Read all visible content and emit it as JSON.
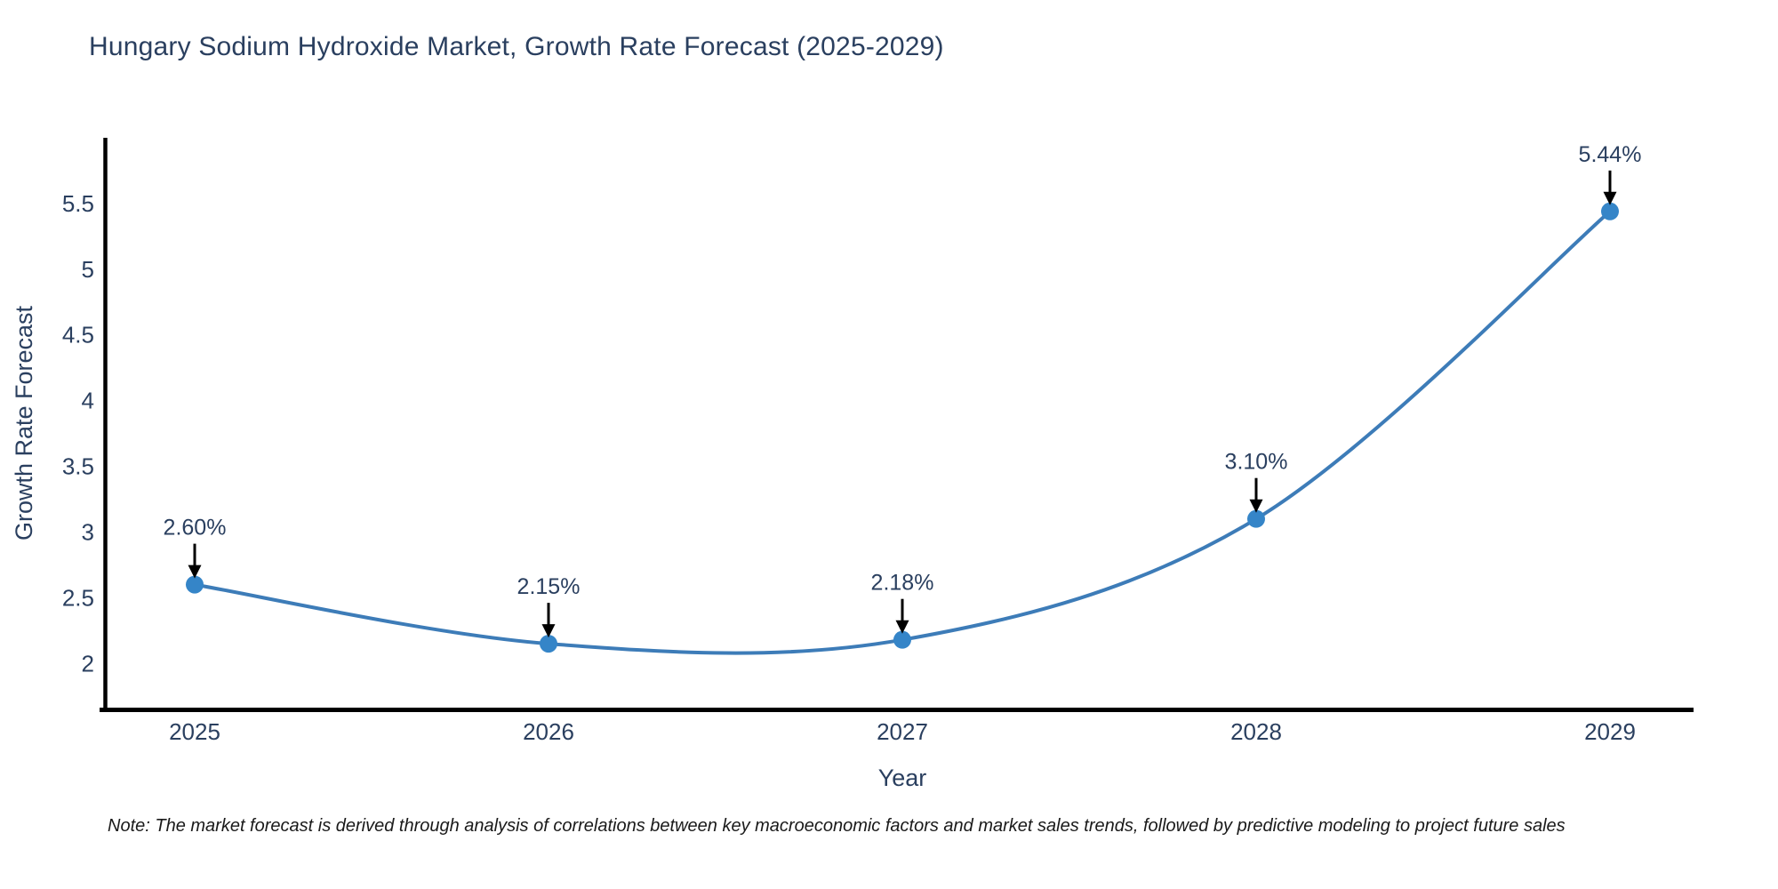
{
  "chart_data": {
    "type": "line",
    "line_shape": "spline",
    "title": "Hungary Sodium Hydroxide Market, Growth Rate Forecast (2025-2029)",
    "x": [
      "2025",
      "2026",
      "2027",
      "2028",
      "2029"
    ],
    "series": [
      {
        "name": "Growth Rate Forecast",
        "values": [
          2.6,
          2.15,
          2.18,
          3.1,
          5.44
        ]
      }
    ],
    "point_labels": [
      "2.60%",
      "2.15%",
      "2.18%",
      "3.10%",
      "5.44%"
    ],
    "xlabel": "Year",
    "ylabel": "Growth Rate Forecast",
    "y_ticks": [
      2,
      2.5,
      3,
      3.5,
      4,
      4.5,
      5,
      5.5
    ],
    "ylim": [
      1.65,
      6.0
    ],
    "grid": false,
    "legend": "none",
    "colors": {
      "line": "#3d7cb8",
      "marker": "#3585c8",
      "arrow": "#000000",
      "axis": "#000000",
      "label_text": "#2a3f5f"
    }
  },
  "footnote": "Note: The market forecast is derived through analysis of correlations between key macroeconomic factors and market sales trends, followed by predictive modeling to project future sales"
}
